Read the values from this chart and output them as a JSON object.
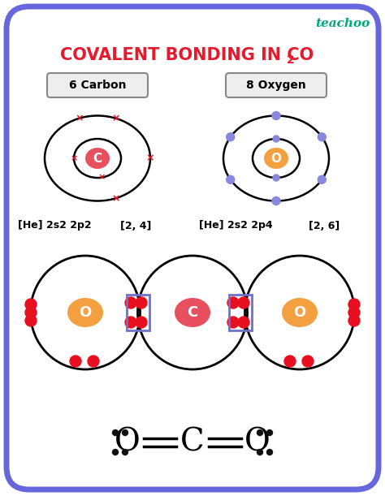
{
  "title": "COVALENT BONDING IN CO",
  "title_sub": "2",
  "teachoo_color": "#00a878",
  "title_color": "#e8192c",
  "bg_color": "#ffffff",
  "border_color": "#6666dd",
  "carbon_label": "6 Carbon",
  "oxygen_label": "8 Oxygen",
  "carbon_nucleus_color": "#e85060",
  "oxygen_nucleus_color": "#f5a040",
  "carbon_electron_color": "#e81020",
  "oxygen_electron_color": "#8888dd",
  "red_dot_color": "#e81020",
  "box_color": "#7070cc",
  "text_color": "#111111",
  "config_c": "[He] 2s2 2p2",
  "config_c_bracket": "[2, 4]",
  "config_o": "[He] 2s2 2p4",
  "config_o_bracket": "[2, 6]"
}
